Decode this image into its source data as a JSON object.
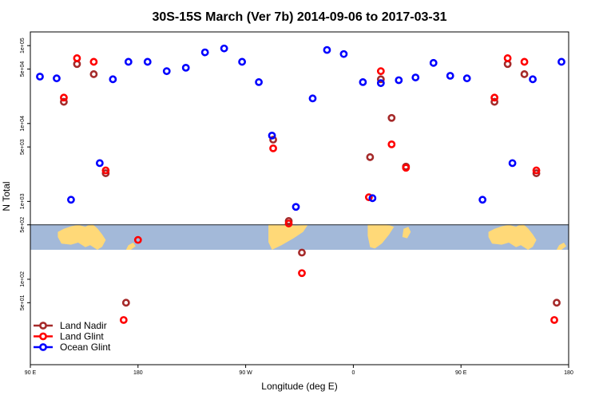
{
  "chart_data": {
    "type": "scatter",
    "title": "30S-15S March (Ver 7b)   2014-09-06 to 2017-03-31",
    "xlabel": "Longitude (deg E)",
    "ylabel": "N Total",
    "xscale": "linear",
    "yscale": "log",
    "xlim": [
      90,
      540
    ],
    "ylim": [
      8,
      150000
    ],
    "x_ticks": [
      {
        "value": 90,
        "label": "90 E"
      },
      {
        "value": 180,
        "label": "180"
      },
      {
        "value": 270,
        "label": "90 W"
      },
      {
        "value": 360,
        "label": "0"
      },
      {
        "value": 450,
        "label": "90 E"
      },
      {
        "value": 540,
        "label": "180"
      }
    ],
    "y_ticks": [
      {
        "value": 50,
        "label": "5e+01"
      },
      {
        "value": 100,
        "label": "1e+02"
      },
      {
        "value": 500,
        "label": "5e+02"
      },
      {
        "value": 1000,
        "label": "1e+03"
      },
      {
        "value": 5000,
        "label": "5e+03"
      },
      {
        "value": 10000,
        "label": "1e+04"
      },
      {
        "value": 50000,
        "label": "5e+04"
      },
      {
        "value": 100000,
        "label": "1e+05"
      }
    ],
    "reference_line_y": 500,
    "map_band": {
      "lon_start": 90,
      "lon_end": 540,
      "repeat_period": 360
    },
    "legend": {
      "position": "bottom-left"
    },
    "series": [
      {
        "name": "Land Nadir",
        "color": "#a52a2a",
        "points": [
          {
            "x": 118,
            "y": 19000
          },
          {
            "x": 129,
            "y": 58000
          },
          {
            "x": 143,
            "y": 43000
          },
          {
            "x": 153,
            "y": 2300
          },
          {
            "x": 170,
            "y": 50
          },
          {
            "x": 293,
            "y": 6200
          },
          {
            "x": 306,
            "y": 560
          },
          {
            "x": 317,
            "y": 220
          },
          {
            "x": 374,
            "y": 3700
          },
          {
            "x": 383,
            "y": 37000
          },
          {
            "x": 392,
            "y": 11800
          },
          {
            "x": 404,
            "y": 2800
          },
          {
            "x": 478,
            "y": 19000
          },
          {
            "x": 489,
            "y": 58000
          },
          {
            "x": 503,
            "y": 43000
          },
          {
            "x": 513,
            "y": 2300
          },
          {
            "x": 530,
            "y": 50
          }
        ]
      },
      {
        "name": "Land Glint",
        "color": "#ff0000",
        "points": [
          {
            "x": 118,
            "y": 21500
          },
          {
            "x": 129,
            "y": 69000
          },
          {
            "x": 143,
            "y": 62000
          },
          {
            "x": 153,
            "y": 2500
          },
          {
            "x": 168,
            "y": 30
          },
          {
            "x": 180,
            "y": 320
          },
          {
            "x": 293,
            "y": 4800
          },
          {
            "x": 306,
            "y": 520
          },
          {
            "x": 317,
            "y": 120
          },
          {
            "x": 373,
            "y": 1130
          },
          {
            "x": 383,
            "y": 47000
          },
          {
            "x": 392,
            "y": 5400
          },
          {
            "x": 404,
            "y": 2700
          },
          {
            "x": 478,
            "y": 21500
          },
          {
            "x": 489,
            "y": 69000
          },
          {
            "x": 503,
            "y": 62000
          },
          {
            "x": 513,
            "y": 2500
          },
          {
            "x": 528,
            "y": 30
          }
        ]
      },
      {
        "name": "Ocean Glint",
        "color": "#0000ff",
        "points": [
          {
            "x": 98,
            "y": 40000
          },
          {
            "x": 112,
            "y": 38000
          },
          {
            "x": 124,
            "y": 1050
          },
          {
            "x": 148,
            "y": 3100
          },
          {
            "x": 159,
            "y": 37000
          },
          {
            "x": 172,
            "y": 62000
          },
          {
            "x": 188,
            "y": 62000
          },
          {
            "x": 204,
            "y": 47000
          },
          {
            "x": 220,
            "y": 52000
          },
          {
            "x": 236,
            "y": 82000
          },
          {
            "x": 252,
            "y": 92000
          },
          {
            "x": 267,
            "y": 62000
          },
          {
            "x": 281,
            "y": 34000
          },
          {
            "x": 292,
            "y": 7000
          },
          {
            "x": 312,
            "y": 850
          },
          {
            "x": 326,
            "y": 21000
          },
          {
            "x": 338,
            "y": 88000
          },
          {
            "x": 352,
            "y": 78000
          },
          {
            "x": 368,
            "y": 34000
          },
          {
            "x": 376,
            "y": 1100
          },
          {
            "x": 383,
            "y": 33000
          },
          {
            "x": 398,
            "y": 36000
          },
          {
            "x": 412,
            "y": 39000
          },
          {
            "x": 427,
            "y": 60000
          },
          {
            "x": 441,
            "y": 41000
          },
          {
            "x": 455,
            "y": 38000
          },
          {
            "x": 468,
            "y": 1050
          },
          {
            "x": 493,
            "y": 3100
          },
          {
            "x": 510,
            "y": 37000
          },
          {
            "x": 534,
            "y": 62000
          }
        ]
      }
    ]
  }
}
